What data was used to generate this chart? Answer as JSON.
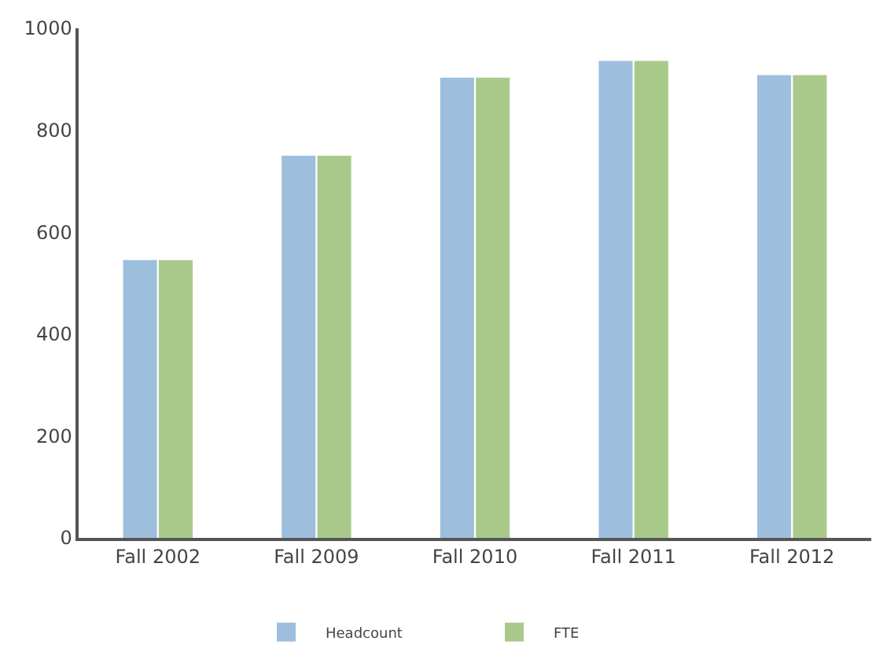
{
  "chart_data": {
    "type": "bar",
    "categories": [
      "Fall 2002",
      "Fall 2009",
      "Fall 2010",
      "Fall 2011",
      "Fall 2012"
    ],
    "series": [
      {
        "name": "Headcount",
        "color": "#9dbfdd",
        "values": [
          545,
          750,
          903,
          936,
          908
        ]
      },
      {
        "name": "FTE",
        "color": "#a9c98b",
        "values": [
          545,
          750,
          903,
          936,
          908
        ]
      }
    ],
    "ylim": [
      0,
      1000
    ],
    "yticks": [
      0,
      200,
      400,
      600,
      800,
      1000
    ],
    "grid": false,
    "legend": "bottom"
  }
}
